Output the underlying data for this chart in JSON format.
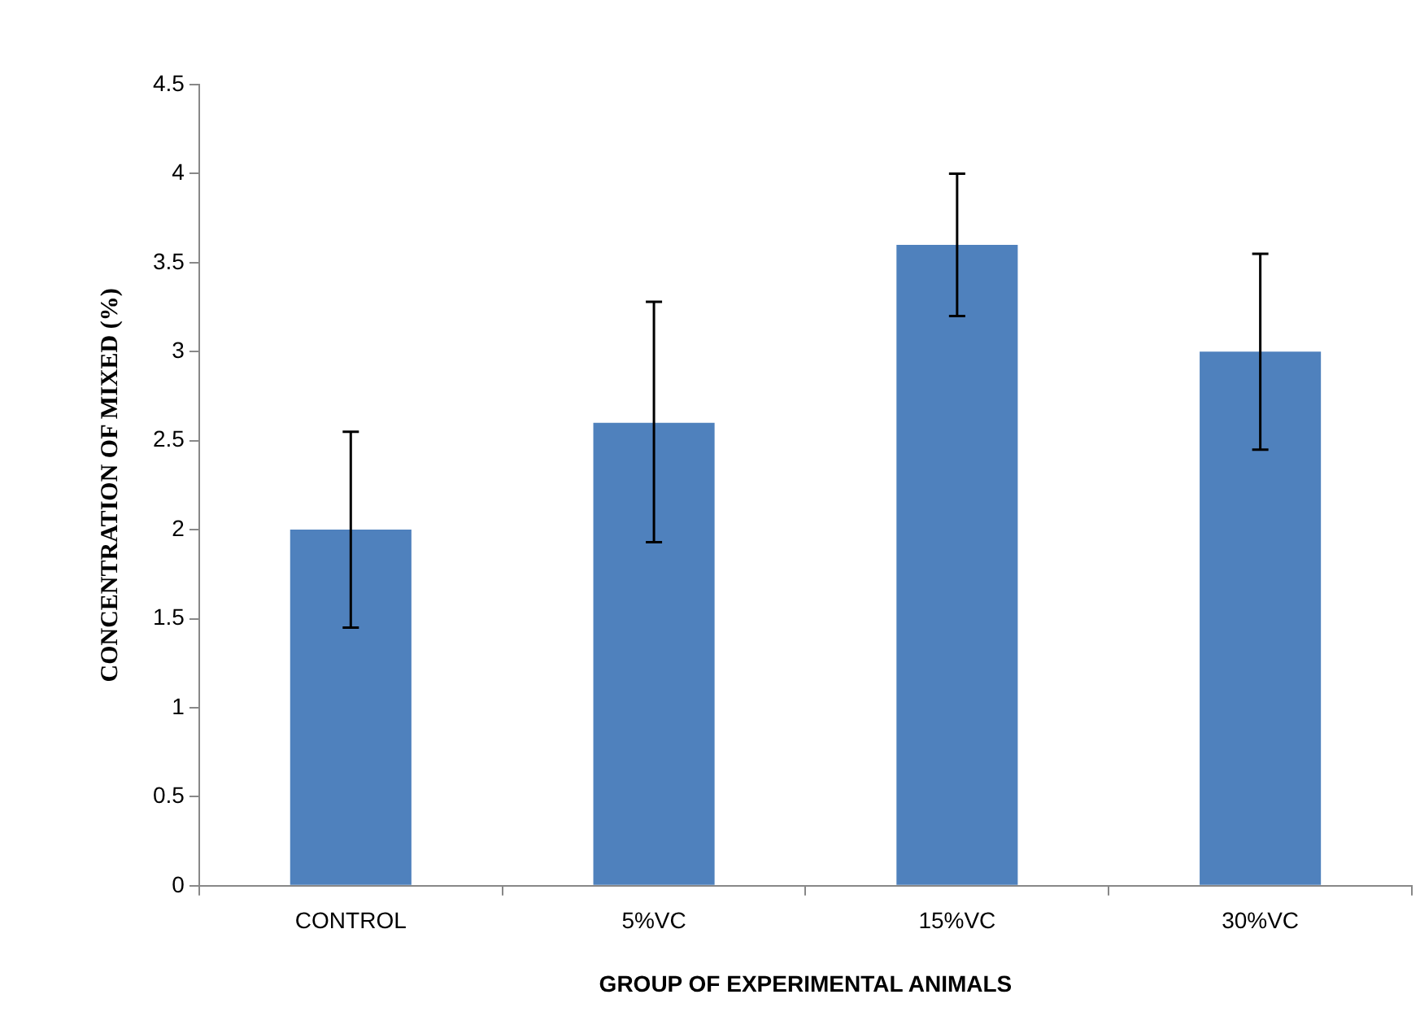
{
  "chart_data": {
    "type": "bar",
    "xlabel": "GROUP OF EXPERIMENTAL ANIMALS",
    "ylabel": "CONCENTRATION OF MIXED (%)",
    "categories": [
      "CONTROL",
      "5%VC",
      "15%VC",
      "30%VC"
    ],
    "values": [
      2.0,
      2.6,
      3.6,
      3.0
    ],
    "errors": [
      [
        1.45,
        2.55
      ],
      [
        1.93,
        3.28
      ],
      [
        3.2,
        4.0
      ],
      [
        2.45,
        3.55
      ]
    ],
    "color": "#4f81bd",
    "ylim": [
      0,
      4.5
    ],
    "yticks": [
      0,
      0.5,
      1,
      1.5,
      2,
      2.5,
      3,
      3.5,
      4,
      4.5
    ],
    "grid": false,
    "legend": false
  }
}
